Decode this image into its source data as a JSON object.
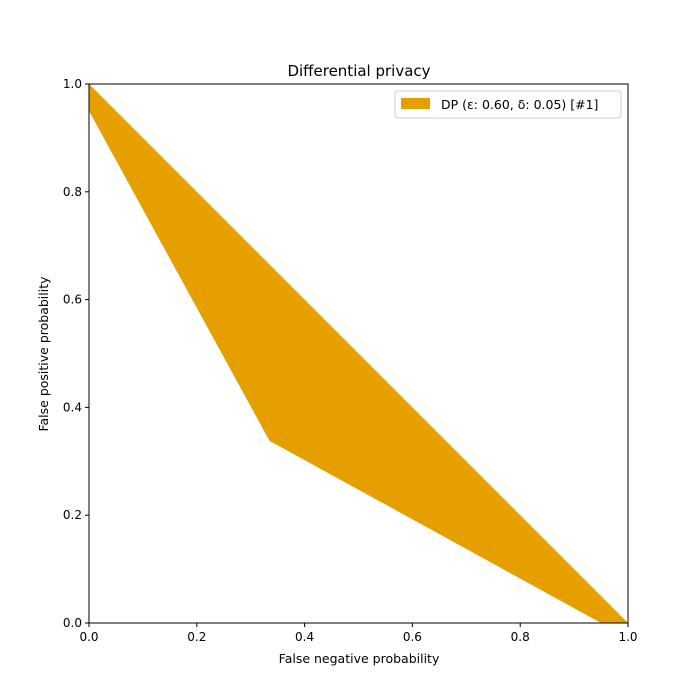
{
  "chart_data": {
    "type": "area",
    "title": "Differential privacy",
    "xlabel": "False negative probability",
    "ylabel": "False positive probability",
    "xlim": [
      0,
      1
    ],
    "ylim": [
      0,
      1
    ],
    "xticks": [
      "0.0",
      "0.2",
      "0.4",
      "0.6",
      "0.8",
      "1.0"
    ],
    "yticks": [
      "0.0",
      "0.2",
      "0.4",
      "0.6",
      "0.8",
      "1.0"
    ],
    "grid": false,
    "legend_position": "top-right",
    "series": [
      {
        "name": "DP (ε: 0.60, δ: 0.05) [#1]",
        "color": "#e69f00",
        "polygon": [
          [
            0.0,
            1.0
          ],
          [
            1.0,
            0.0
          ],
          [
            0.95,
            0.0
          ],
          [
            0.335,
            0.338
          ],
          [
            0.0,
            0.95
          ]
        ]
      }
    ]
  }
}
